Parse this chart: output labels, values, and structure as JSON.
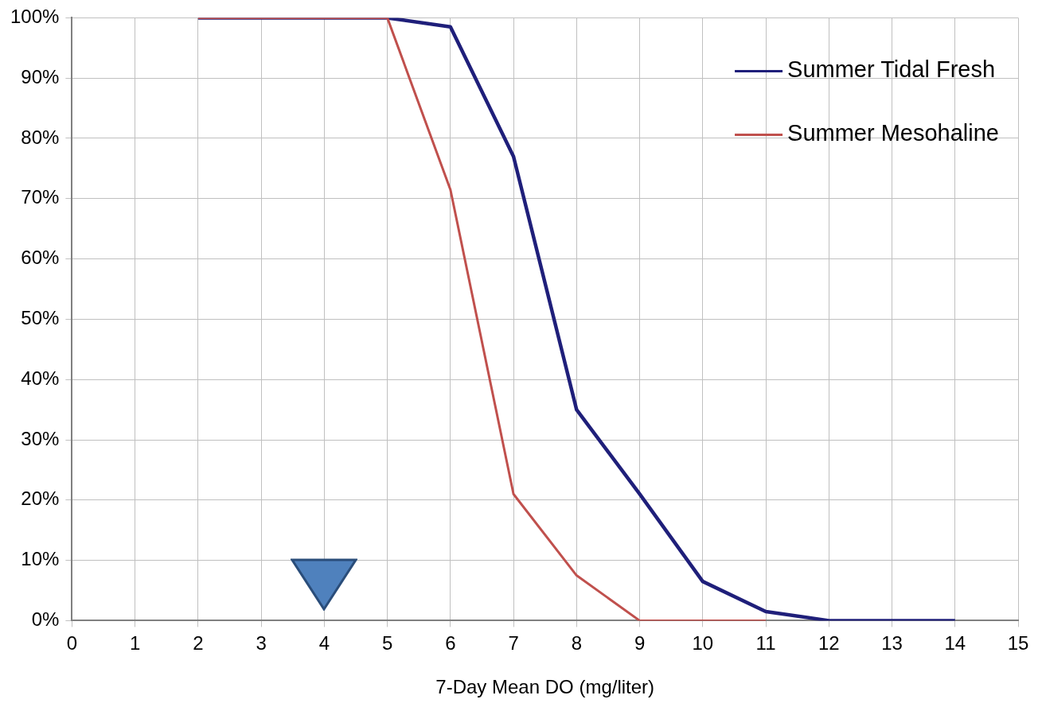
{
  "chart_data": {
    "type": "line",
    "xlabel": "7-Day Mean DO (mg/liter)",
    "xlim": [
      0,
      15
    ],
    "xticks": [
      0,
      1,
      2,
      3,
      4,
      5,
      6,
      7,
      8,
      9,
      10,
      11,
      12,
      13,
      14,
      15
    ],
    "ylim": [
      0,
      100
    ],
    "yticks": [
      {
        "value": 0,
        "label": "0%"
      },
      {
        "value": 10,
        "label": "10%"
      },
      {
        "value": 20,
        "label": "20%"
      },
      {
        "value": 30,
        "label": "30%"
      },
      {
        "value": 40,
        "label": "40%"
      },
      {
        "value": 50,
        "label": "50%"
      },
      {
        "value": 60,
        "label": "60%"
      },
      {
        "value": 70,
        "label": "70%"
      },
      {
        "value": 80,
        "label": "80%"
      },
      {
        "value": 90,
        "label": "90%"
      },
      {
        "value": 100,
        "label": "100%"
      }
    ],
    "grid": true,
    "legend": "top right",
    "marker": "none",
    "line_style": "solid",
    "series": [
      {
        "name": "Summer Tidal Fresh",
        "color": "#1f1f7a",
        "x": [
          2,
          3,
          4,
          5,
          6,
          7,
          8,
          9,
          10,
          11,
          12,
          13,
          14
        ],
        "values": [
          100,
          100,
          100,
          100,
          98.5,
          77,
          35,
          21,
          6.5,
          1.5,
          0,
          0,
          0
        ]
      },
      {
        "name": "Summer Mesohaline",
        "color": "#c0504d",
        "x": [
          2,
          3,
          4,
          5,
          6,
          7,
          8,
          9,
          10,
          11
        ],
        "values": [
          100,
          100,
          100,
          100,
          71.5,
          21,
          7.5,
          0,
          0,
          0
        ]
      }
    ]
  }
}
